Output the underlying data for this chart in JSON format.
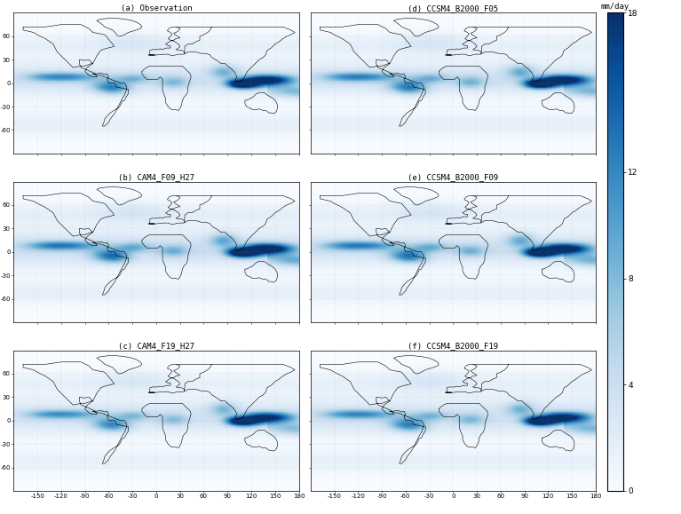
{
  "panels": [
    {
      "label": "(a) Observation",
      "row": 0,
      "col": 0
    },
    {
      "label": "(b) CAM4_F09_H27",
      "row": 1,
      "col": 0
    },
    {
      "label": "(c) CAM4_F19_H27",
      "row": 2,
      "col": 0
    },
    {
      "label": "(d) CCSM4_B2000_F05",
      "row": 0,
      "col": 1
    },
    {
      "label": "(e) CCSM4_B2000_F09",
      "row": 1,
      "col": 1
    },
    {
      "label": "(f) CCSM4_B2000_F19",
      "row": 2,
      "col": 1
    }
  ],
  "cmap_name": "Blues",
  "vmin": 0,
  "vmax": 18,
  "colorbar_ticks": [
    0,
    4,
    8,
    12,
    18
  ],
  "colorbar_label": "mm/day",
  "dot_color": "#999999",
  "background_color": "#ffffff",
  "coast_color": "#000000",
  "title_fontsize": 6.5,
  "tick_fontsize": 5.0,
  "lon_range": [
    -180,
    180
  ],
  "lat_range": [
    -90,
    90
  ],
  "grid_lons": [
    -180,
    -150,
    -120,
    -90,
    -60,
    -30,
    0,
    30,
    60,
    90,
    120,
    150,
    180
  ],
  "grid_lats": [
    -90,
    -60,
    -30,
    0,
    30,
    60,
    90
  ],
  "xtick_vals": [
    -150,
    -120,
    -90,
    -60,
    -30,
    0,
    30,
    60,
    90,
    120,
    150,
    180
  ],
  "ytick_vals": [
    -60,
    -30,
    0,
    30,
    60
  ],
  "panel_configs": [
    {
      "strength": 1.0,
      "itcz_shift": 5.0,
      "spread": 1.0,
      "wp_str": 1.0,
      "mc_str": 1.0
    },
    {
      "strength": 1.1,
      "itcz_shift": 4.0,
      "spread": 1.1,
      "wp_str": 1.1,
      "mc_str": 1.05
    },
    {
      "strength": 0.95,
      "itcz_shift": 5.0,
      "spread": 1.05,
      "wp_str": 0.95,
      "mc_str": 1.0
    },
    {
      "strength": 1.05,
      "itcz_shift": 5.5,
      "spread": 0.95,
      "wp_str": 1.05,
      "mc_str": 0.98
    },
    {
      "strength": 1.08,
      "itcz_shift": 4.5,
      "spread": 1.0,
      "wp_str": 1.08,
      "mc_str": 1.02
    },
    {
      "strength": 1.0,
      "itcz_shift": 5.0,
      "spread": 1.1,
      "wp_str": 1.0,
      "mc_str": 1.0
    }
  ]
}
